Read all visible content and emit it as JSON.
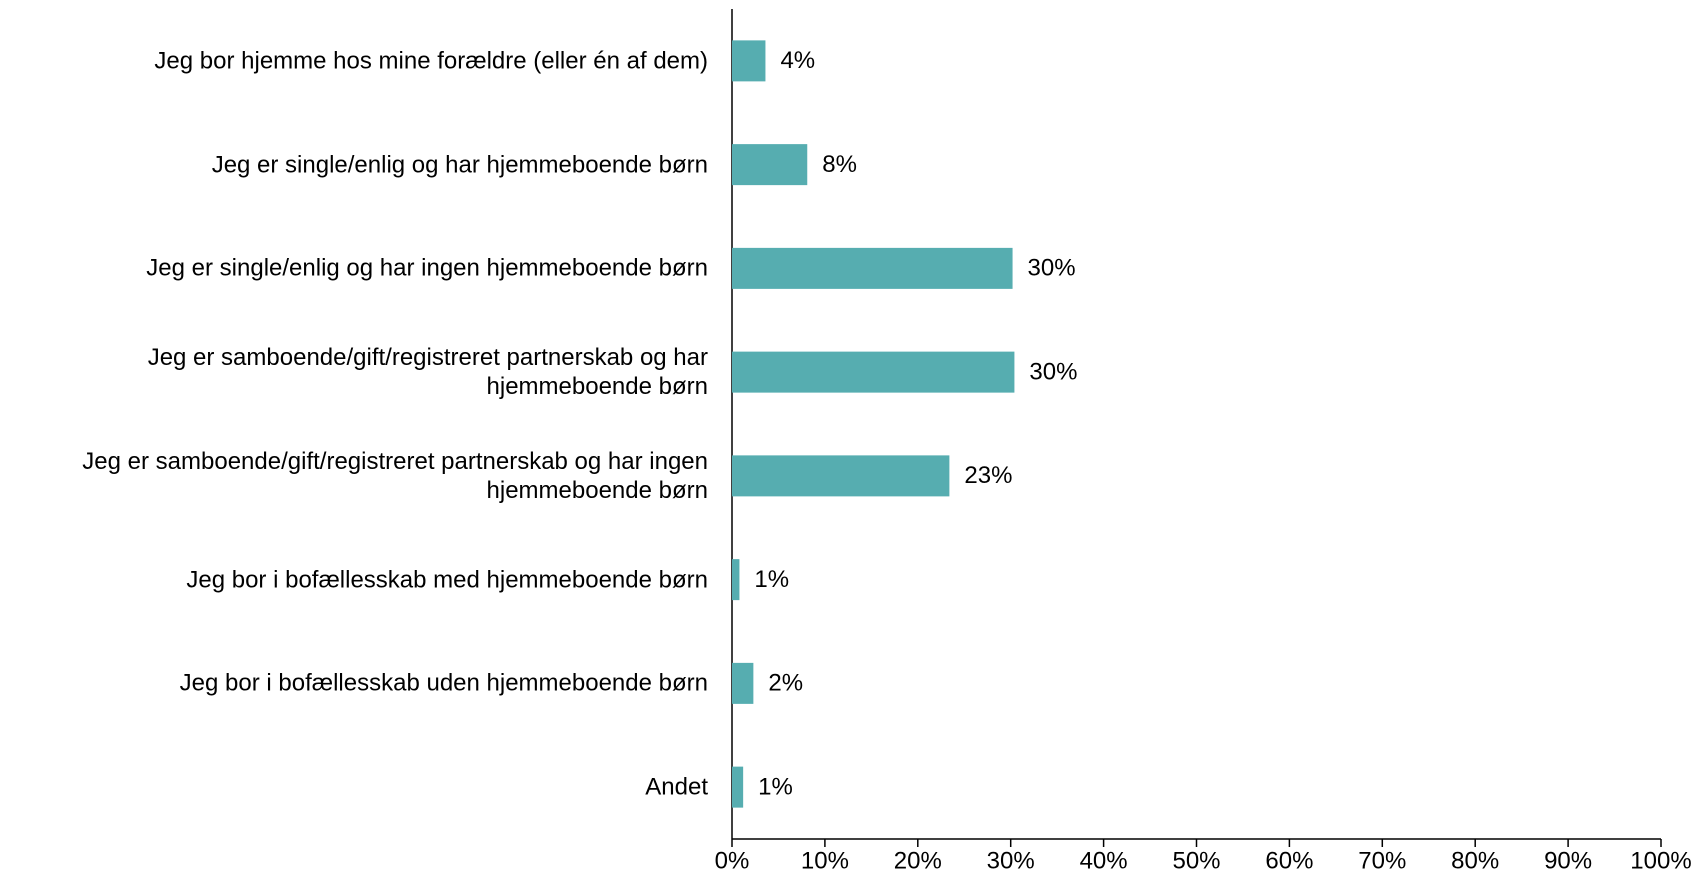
{
  "chart_data": {
    "type": "bar",
    "orientation": "horizontal",
    "categories": [
      "Jeg bor hjemme hos mine forældre (eller én af dem)",
      "Jeg er single/enlig og har hjemmeboende børn",
      "Jeg er single/enlig og har ingen hjemmeboende børn",
      "Jeg er samboende/gift/registreret partnerskab og har hjemmeboende børn",
      "Jeg er samboende/gift/registreret partnerskab og har ingen hjemmeboende børn",
      "Jeg bor i bofællesskab med hjemmeboende børn",
      "Jeg bor i bofællesskab uden hjemmeboende børn",
      "Andet"
    ],
    "values": [
      3.6,
      8.1,
      30.2,
      30.4,
      23.4,
      0.8,
      2.3,
      1.2
    ],
    "value_labels": [
      "4%",
      "8%",
      "30%",
      "30%",
      "23%",
      "1%",
      "2%",
      "1%"
    ],
    "color": "#56adb0",
    "xlim": [
      0,
      100
    ],
    "xticks": [
      {
        "value": 0,
        "label": "0%"
      },
      {
        "value": 10,
        "label": "10%"
      },
      {
        "value": 20,
        "label": "20%"
      },
      {
        "value": 30,
        "label": "30%"
      },
      {
        "value": 40,
        "label": "40%"
      },
      {
        "value": 50,
        "label": "50%"
      },
      {
        "value": 60,
        "label": "60%"
      },
      {
        "value": 70,
        "label": "70%"
      },
      {
        "value": 80,
        "label": "80%"
      },
      {
        "value": 90,
        "label": "90%"
      },
      {
        "value": 100,
        "label": "100%"
      }
    ],
    "grid": false
  }
}
